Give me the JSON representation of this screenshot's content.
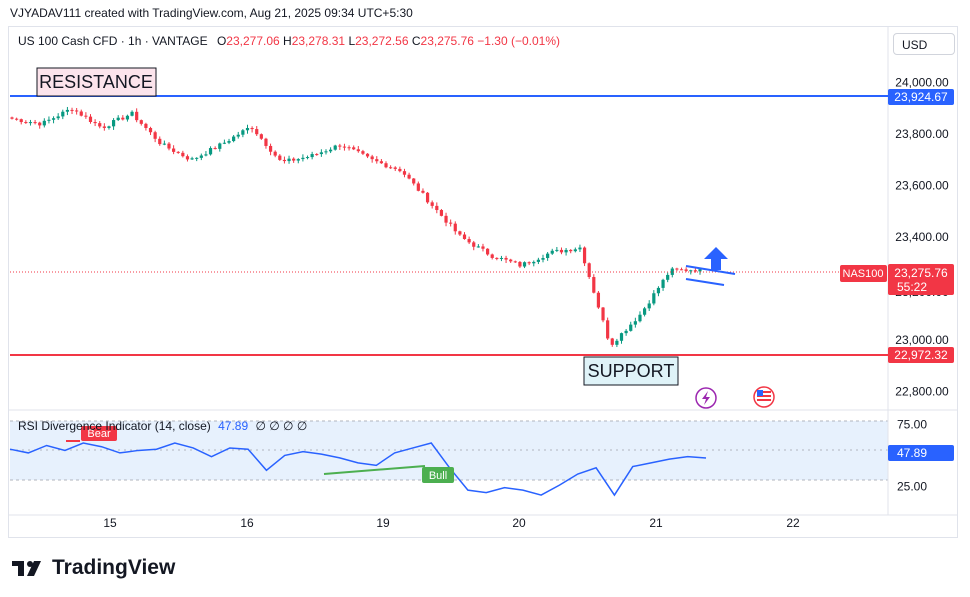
{
  "header": {
    "title": "VJYADAV111 created with TradingView.com, Aug 21, 2025 09:34 UTC+5:30"
  },
  "legend": {
    "symbol": "US 100 Cash CFD · 1h · VANTAGE",
    "o_label": "O",
    "o": "23,277.06",
    "h_label": "H",
    "h": "23,278.31",
    "l_label": "L",
    "l": "23,272.56",
    "c_label": "C",
    "c": "23,275.76",
    "change": "−1.30 (−0.01%)"
  },
  "currency": "USD",
  "annotations": {
    "resistance": "RESISTANCE",
    "support": "SUPPORT"
  },
  "price_badges": {
    "resistance": "23,924.67",
    "support": "22,972.32",
    "symbol": "NAS100",
    "last": "23,275.76",
    "countdown": "55:22",
    "rsi_last": "47.89",
    "partial_tick": "23,200.00"
  },
  "rsi": {
    "title": "RSI Divergence Indicator (14, close)",
    "value": "47.89",
    "extras": "∅ ∅ ∅ ∅",
    "bear_label": "Bear",
    "bull_label": "Bull",
    "ticks": [
      "75.00",
      "25.00"
    ]
  },
  "footer": {
    "brand": "TradingView"
  },
  "colors": {
    "up": "#089981",
    "down": "#f23645",
    "resistance": "#2962ff",
    "support": "#f23645",
    "rsi": "#2962ff"
  },
  "chart_data": [
    {
      "type": "candlestick",
      "title": "US 100 Cash CFD · 1h · VANTAGE",
      "x_ticks": [
        "15",
        "16",
        "19",
        "20",
        "21",
        "22"
      ],
      "y_ticks": [
        "24,000.00",
        "23,800.00",
        "23,600.00",
        "23,400.00",
        "23,000.00",
        "22,800.00"
      ],
      "ylim": [
        22760,
        24080
      ],
      "resistance_level": 23924.67,
      "support_level": 22972.32,
      "last_price": 23275.76,
      "key_points": [
        {
          "x": "14 Aug",
          "close": 23860
        },
        {
          "x": "14 Aug",
          "close": 23840
        },
        {
          "x": "15 Aug",
          "close": 23900
        },
        {
          "x": "15 Aug",
          "close": 23825
        },
        {
          "x": "15 Aug",
          "close": 23880
        },
        {
          "x": "15 Aug",
          "close": 23760
        },
        {
          "x": "16 Aug",
          "close": 23700
        },
        {
          "x": "16 Aug",
          "close": 23760
        },
        {
          "x": "18 Aug",
          "close": 23830
        },
        {
          "x": "18 Aug",
          "close": 23690
        },
        {
          "x": "19 Aug",
          "close": 23715
        },
        {
          "x": "19 Aug",
          "close": 23760
        },
        {
          "x": "19 Aug",
          "close": 23700
        },
        {
          "x": "19 Aug",
          "close": 23660
        },
        {
          "x": "19 Aug",
          "close": 23530
        },
        {
          "x": "20 Aug",
          "close": 23400
        },
        {
          "x": "20 Aug",
          "close": 23330
        },
        {
          "x": "20 Aug",
          "close": 23290
        },
        {
          "x": "20 Aug",
          "close": 23340
        },
        {
          "x": "20 Aug",
          "close": 23360
        },
        {
          "x": "21 Aug",
          "close": 22980
        },
        {
          "x": "21 Aug",
          "close": 23100
        },
        {
          "x": "21 Aug",
          "close": 23270
        },
        {
          "x": "21 Aug",
          "close": 23275.76
        }
      ]
    },
    {
      "type": "line",
      "title": "RSI Divergence Indicator (14, close)",
      "ylim": [
        10,
        85
      ],
      "y_ticks": [
        "75.00",
        "25.00"
      ],
      "upper_band": 70,
      "lower_band": 30,
      "series": [
        {
          "values": [
            55,
            52,
            58,
            54,
            60,
            57,
            52,
            54,
            55,
            60,
            56,
            49,
            56,
            55,
            38,
            50,
            53,
            51,
            48,
            44,
            42,
            52,
            56,
            60,
            40,
            22,
            20,
            24,
            22,
            18,
            26,
            35,
            40,
            18,
            41,
            44,
            47,
            49,
            47.89
          ]
        }
      ]
    }
  ]
}
